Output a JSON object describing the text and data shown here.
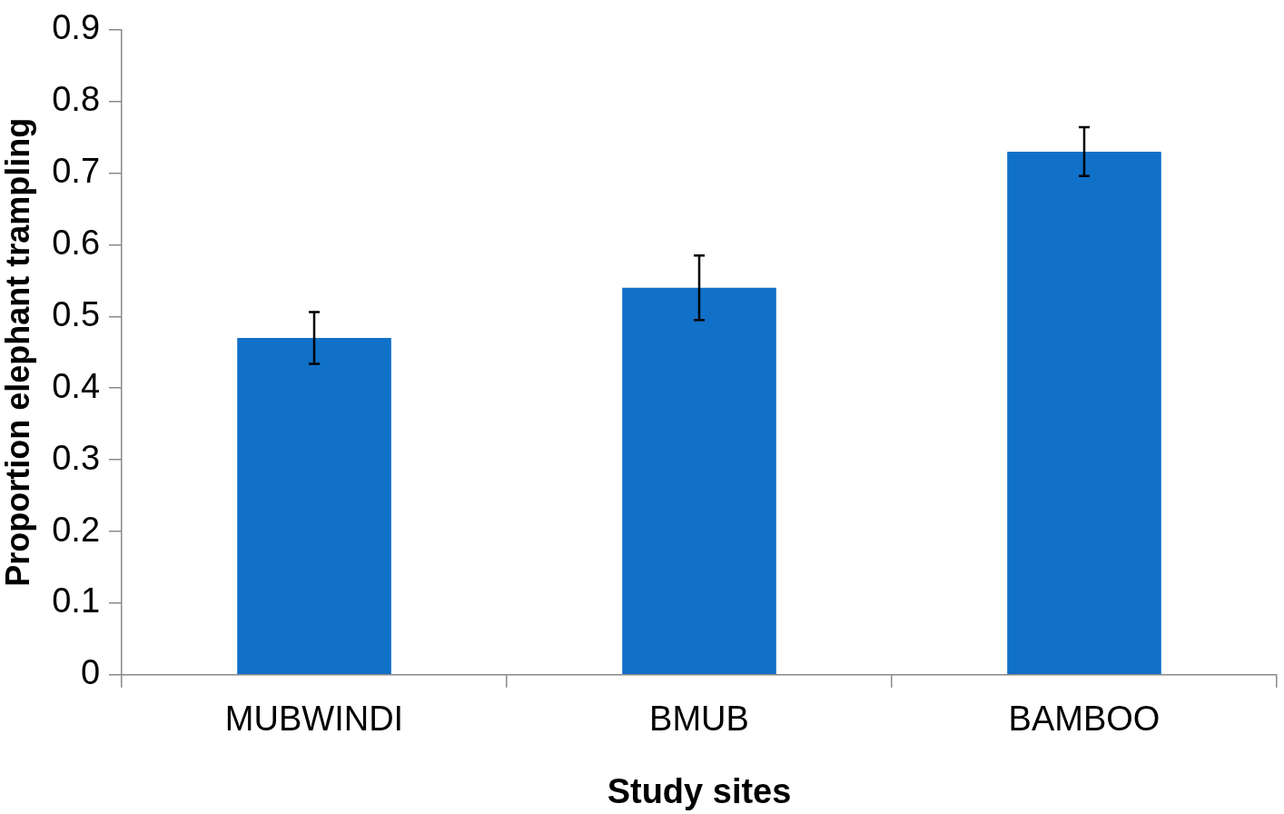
{
  "chart_data": {
    "type": "bar",
    "xlabel": "Study sites",
    "ylabel": "Proportion elephant trampling",
    "categories": [
      "MUBWINDI",
      "BMUB",
      "BAMBOO"
    ],
    "values": [
      0.47,
      0.54,
      0.73
    ],
    "errors": [
      0.036,
      0.045,
      0.034
    ],
    "color": "#1170c8",
    "ylim": [
      0,
      0.9
    ],
    "yticks": [
      0,
      0.1,
      0.2,
      0.3,
      0.4,
      0.5,
      0.6,
      0.7,
      0.8,
      0.9
    ],
    "grid": false,
    "legend": false
  }
}
